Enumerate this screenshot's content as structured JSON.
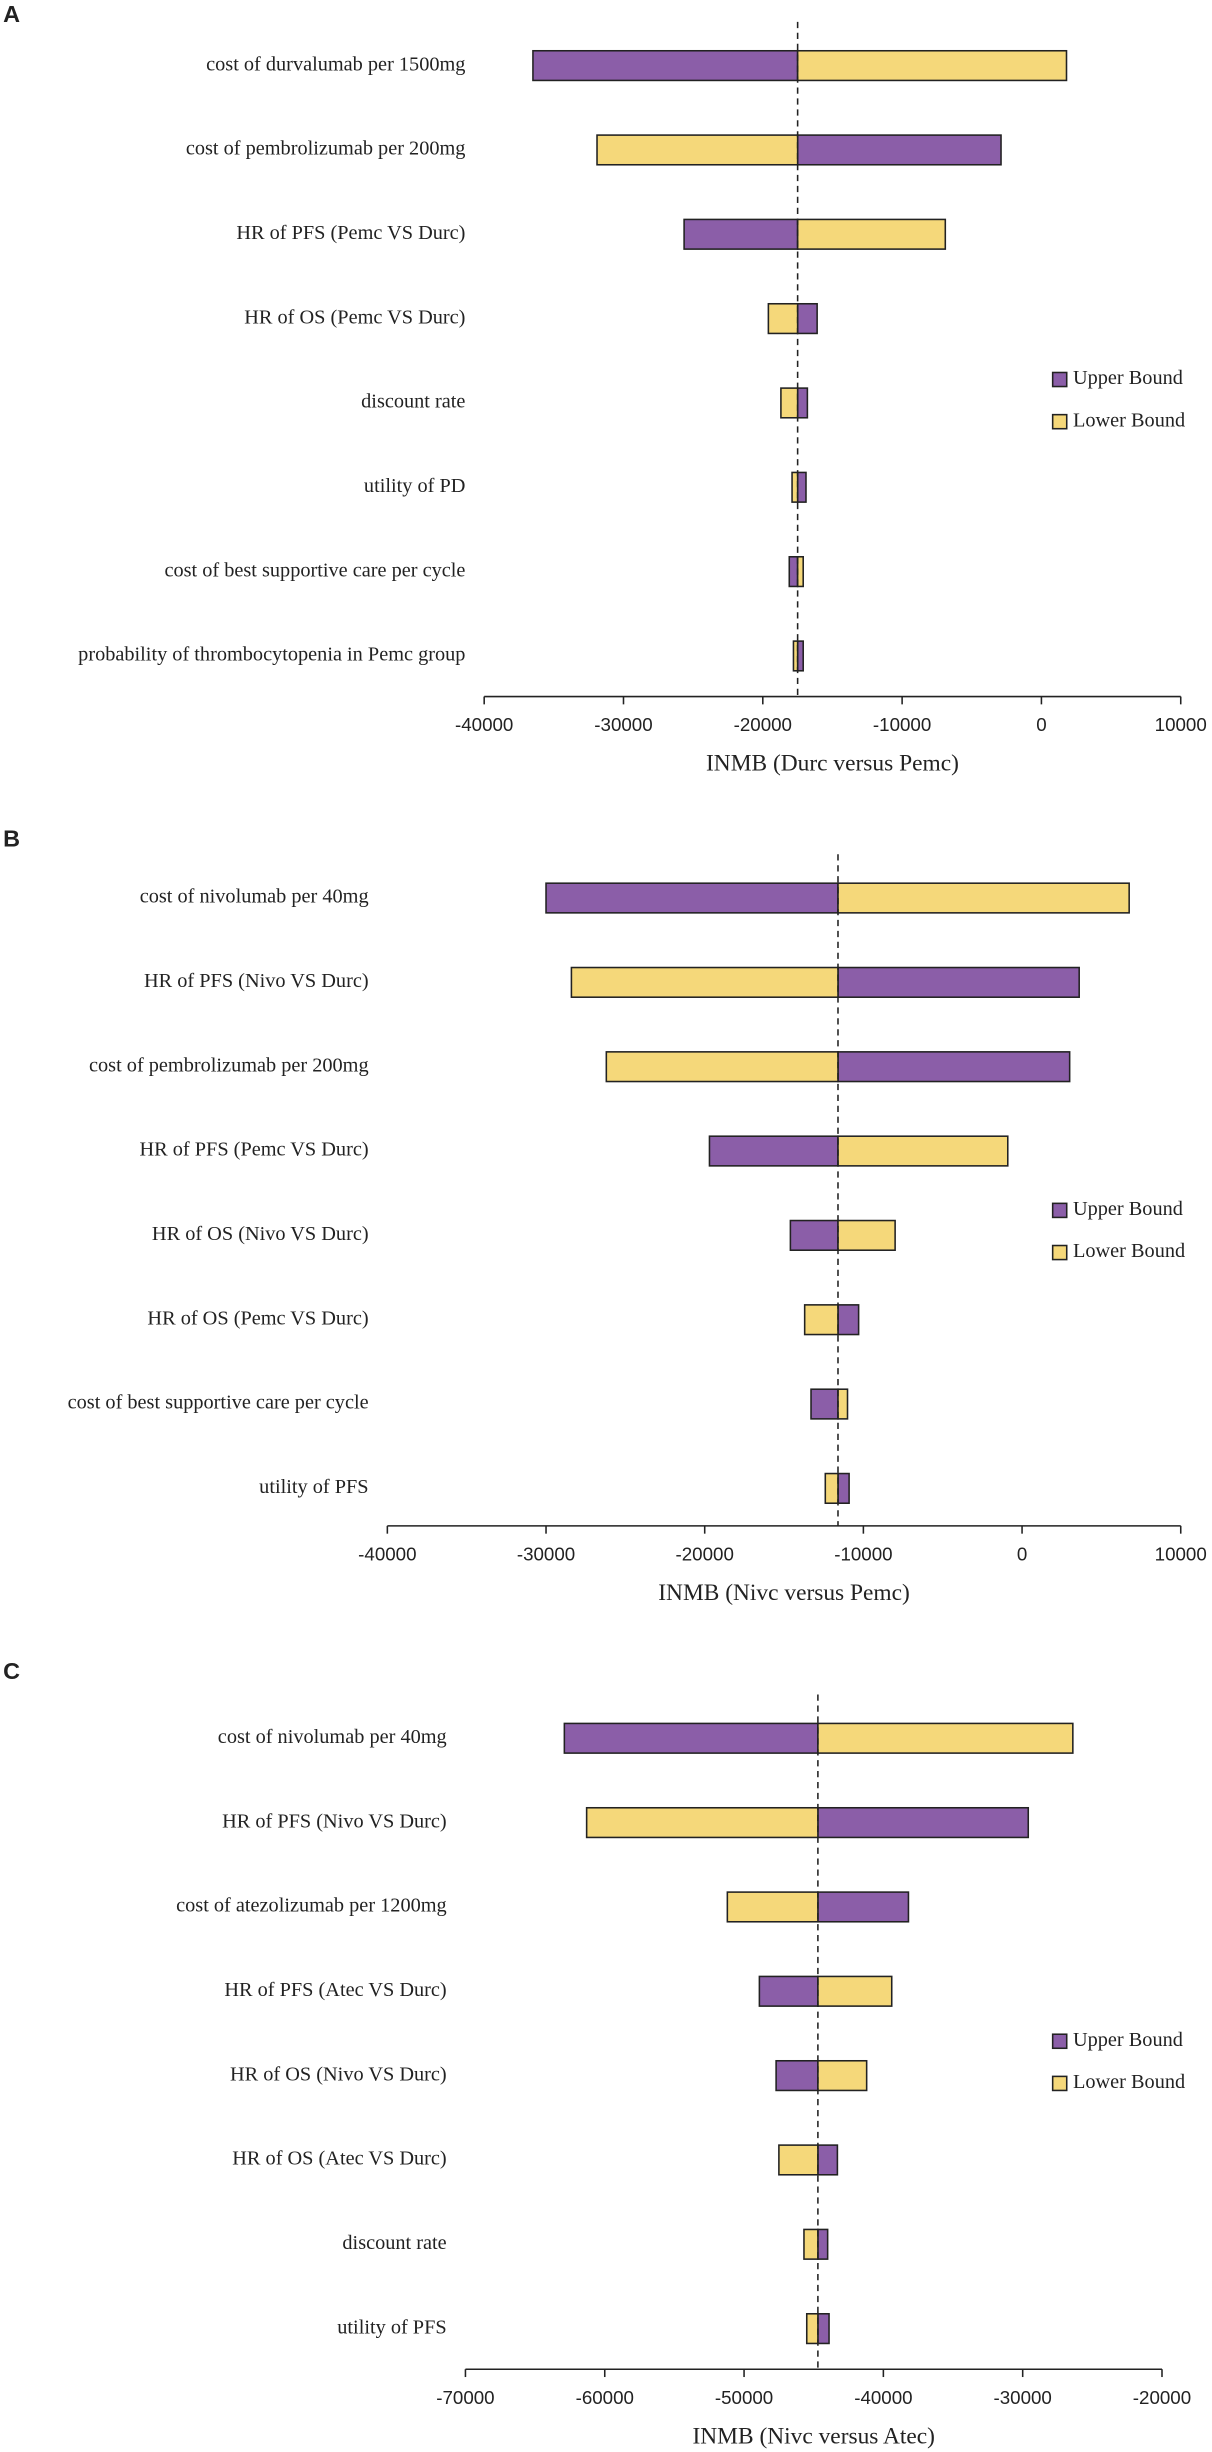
{
  "chart_data": [
    {
      "type": "tornado",
      "label": "A",
      "xlabel": "INMB (Durc versus Pemc)",
      "categories": [
        "cost of durvalumab per 1500mg",
        "cost of pembrolizumab per 200mg",
        "HR of PFS (Pemc VS Durc)",
        "HR of OS (Pemc VS Durc)",
        "discount rate",
        "utility of PD",
        "cost of best supportive care per cycle",
        "probability of thrombocytopenia in Pemc group"
      ],
      "base": -17500,
      "series": [
        {
          "name": "Upper Bound",
          "color": "#8b5ea8",
          "values": [
            -36500,
            -2900,
            -25650,
            -16100,
            -16800,
            -16900,
            -18100,
            -17100
          ]
        },
        {
          "name": "Lower Bound",
          "color": "#f5d87a",
          "values": [
            1800,
            -31900,
            -6900,
            -19600,
            -18700,
            -17900,
            -17100,
            -17800
          ]
        }
      ],
      "xlim": [
        -40000,
        10000
      ],
      "xticks": [
        -40000,
        -30000,
        -20000,
        -10000,
        0,
        10000
      ]
    },
    {
      "type": "tornado",
      "label": "B",
      "xlabel": "INMB (Nivc versus Pemc)",
      "categories": [
        "cost of nivolumab per 40mg",
        "HR of PFS (Nivo VS Durc)",
        "cost of pembrolizumab per 200mg",
        "HR of PFS (Pemc VS Durc)",
        "HR of OS (Nivo VS Durc)",
        "HR of OS (Pemc VS Durc)",
        "cost of best supportive care per cycle",
        "utility of PFS"
      ],
      "base": -11600,
      "series": [
        {
          "name": "Upper Bound",
          "color": "#8b5ea8",
          "values": [
            -30000,
            3600,
            3000,
            -19700,
            -14600,
            -10300,
            -13300,
            -10900
          ]
        },
        {
          "name": "Lower Bound",
          "color": "#f5d87a",
          "values": [
            6750,
            -28400,
            -26200,
            -900,
            -8000,
            -13700,
            -11000,
            -12400
          ]
        }
      ],
      "xlim": [
        -40000,
        10000
      ],
      "xticks": [
        -40000,
        -30000,
        -20000,
        -10000,
        0,
        10000
      ]
    },
    {
      "type": "tornado",
      "label": "C",
      "xlabel": "INMB (Nivc versus Atec)",
      "categories": [
        "cost of nivolumab per 40mg",
        "HR of PFS (Nivo VS Durc)",
        "cost of atezolizumab per 1200mg",
        "HR of PFS (Atec VS Durc)",
        "HR of OS (Nivo VS Durc)",
        "HR of OS (Atec VS Durc)",
        "discount rate",
        "utility of PFS"
      ],
      "base": -44700,
      "series": [
        {
          "name": "Upper Bound",
          "color": "#8b5ea8",
          "values": [
            -62900,
            -29600,
            -38200,
            -48900,
            -47700,
            -43300,
            -44000,
            -43900
          ]
        },
        {
          "name": "Lower Bound",
          "color": "#f5d87a",
          "values": [
            -26400,
            -61300,
            -51200,
            -39400,
            -41200,
            -47500,
            -45700,
            -45500
          ]
        }
      ],
      "xlim": [
        -70000,
        -20000
      ],
      "xticks": [
        -70000,
        -60000,
        -50000,
        -40000,
        -30000,
        -20000
      ]
    }
  ]
}
